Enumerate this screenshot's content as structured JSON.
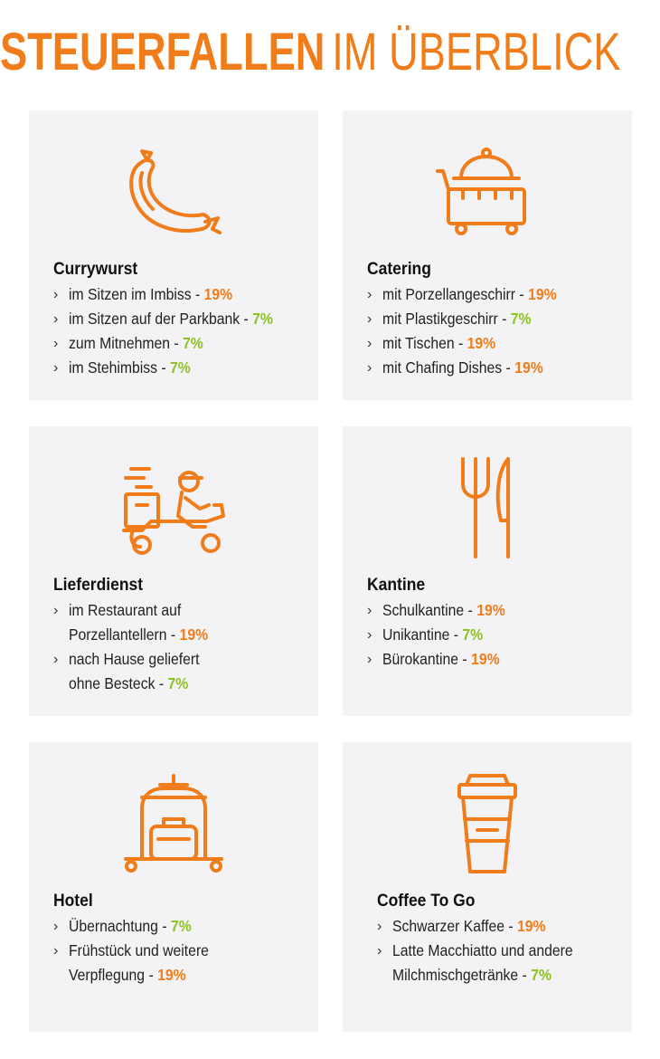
{
  "title": {
    "bold": "STEUERFALLEN",
    "light": "IM ÜBERBLICK"
  },
  "colors": {
    "accent": "#f07c1a",
    "rate_19": "#f07c1a",
    "rate_7": "#8cc224",
    "card_bg": "#f3f2f5"
  },
  "cards": [
    {
      "title": "Currywurst",
      "icon": "sausage-icon",
      "items": [
        {
          "text": "im Sitzen im Imbiss - ",
          "rate": "19%"
        },
        {
          "text": "im Sitzen auf der Parkbank - ",
          "rate": "7%"
        },
        {
          "text": "zum Mitnehmen - ",
          "rate": "7%"
        },
        {
          "text": "im Stehimbiss - ",
          "rate": "7%"
        }
      ]
    },
    {
      "title": "Catering",
      "icon": "catering-trolley-icon",
      "items": [
        {
          "text": "mit Porzellangeschirr - ",
          "rate": "19%"
        },
        {
          "text": "mit Plastikgeschirr - ",
          "rate": "7%"
        },
        {
          "text": "mit Tischen - ",
          "rate": "19%"
        },
        {
          "text": "mit Chafing Dishes - ",
          "rate": "19%"
        }
      ]
    },
    {
      "title": "Lieferdienst",
      "icon": "delivery-scooter-icon",
      "items": [
        {
          "line1": "im Restaurant auf",
          "text": "Porzellantellern - ",
          "rate": "19%"
        },
        {
          "line1": "nach Hause geliefert",
          "text": "ohne Besteck - ",
          "rate": "7%"
        }
      ]
    },
    {
      "title": "Kantine",
      "icon": "fork-knife-icon",
      "items": [
        {
          "text": "Schulkantine - ",
          "rate": "19%"
        },
        {
          "text": "Unikantine - ",
          "rate": "7%"
        },
        {
          "text": "Bürokantine - ",
          "rate": "19%"
        }
      ]
    },
    {
      "title": "Hotel",
      "icon": "luggage-cart-icon",
      "items": [
        {
          "text": "Übernachtung - ",
          "rate": "7%"
        },
        {
          "line1": "Frühstück und weitere",
          "text": "Verpflegung - ",
          "rate": "19%"
        }
      ]
    },
    {
      "title": "Coffee To Go",
      "icon": "coffee-cup-icon",
      "items": [
        {
          "text": "Schwarzer Kaffee - ",
          "rate": "19%"
        },
        {
          "line1": "Latte Macchiatto und andere",
          "text": "Milchmischgetränke - ",
          "rate": "7%"
        }
      ]
    }
  ]
}
